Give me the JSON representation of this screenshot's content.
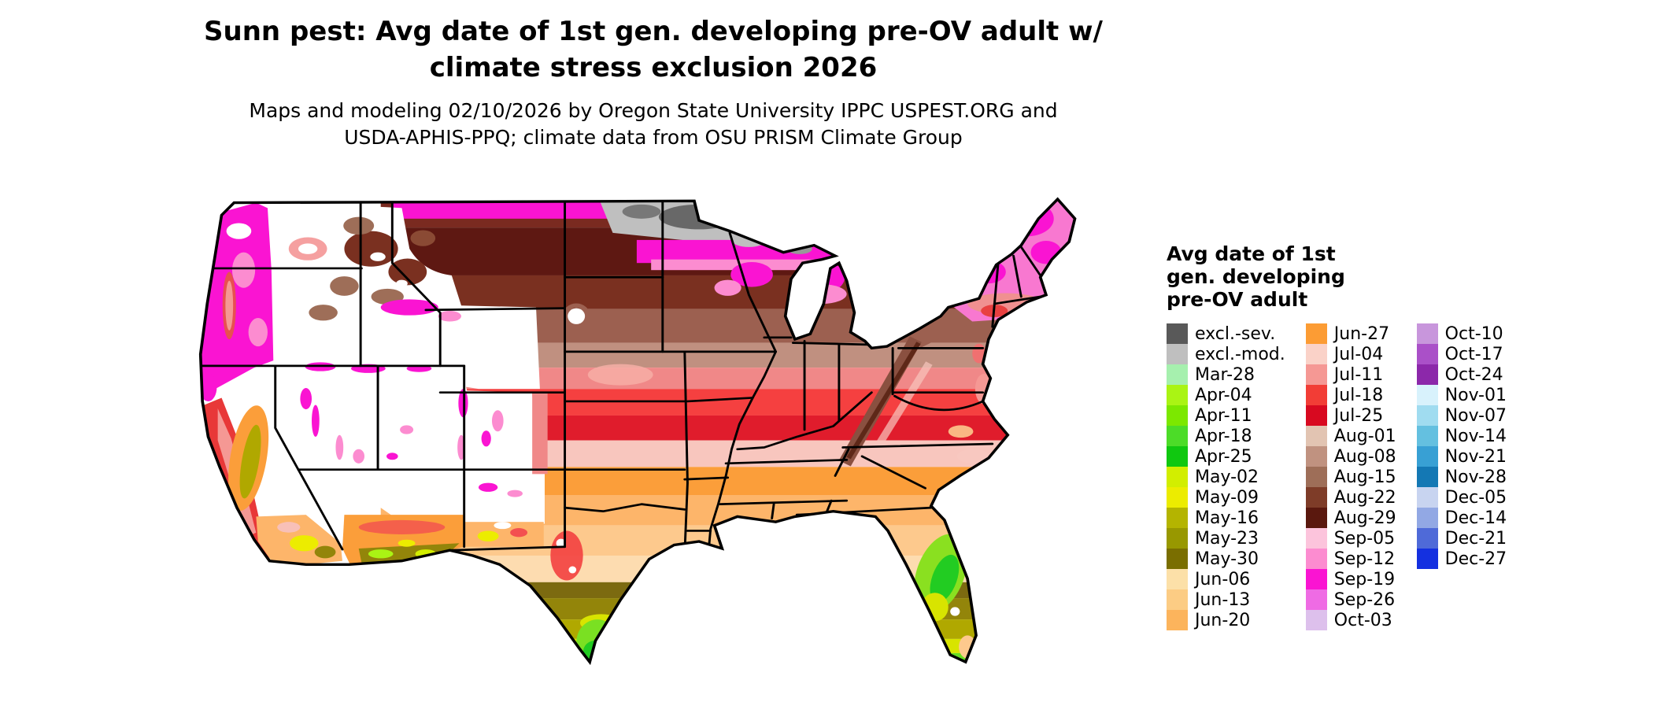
{
  "title": {
    "line1": "Sunn pest: Avg date of 1st gen. developing pre-OV adult w/",
    "line2": "climate stress exclusion 2026"
  },
  "subtitle": {
    "line1": "Maps and modeling 02/10/2026 by Oregon State University IPPC USPEST.ORG and",
    "line2": "USDA-APHIS-PPQ; climate data from OSU PRISM Climate Group"
  },
  "legend": {
    "title_lines": [
      "Avg date of 1st",
      "gen. developing",
      "pre-OV adult"
    ],
    "columns": [
      {
        "items": [
          {
            "label": "excl.-sev.",
            "color": "#595959"
          },
          {
            "label": "excl.-mod.",
            "color": "#bfbfbf"
          },
          {
            "label": "Mar-28",
            "color": "#a6f0ae"
          },
          {
            "label": "Apr-04",
            "color": "#aaf414"
          },
          {
            "label": "Apr-11",
            "color": "#7ce800"
          },
          {
            "label": "Apr-18",
            "color": "#4cdc28"
          },
          {
            "label": "Apr-25",
            "color": "#10c810"
          },
          {
            "label": "May-02",
            "color": "#d2ee00"
          },
          {
            "label": "May-09",
            "color": "#ecec00"
          },
          {
            "label": "May-16",
            "color": "#b4b400"
          },
          {
            "label": "May-23",
            "color": "#989800"
          },
          {
            "label": "May-30",
            "color": "#7a6e00"
          },
          {
            "label": "Jun-06",
            "color": "#fce0a8"
          },
          {
            "label": "Jun-13",
            "color": "#fccc84"
          },
          {
            "label": "Jun-20",
            "color": "#fcb45c"
          }
        ]
      },
      {
        "items": [
          {
            "label": "Jun-27",
            "color": "#fc9c34"
          },
          {
            "label": "Jul-04",
            "color": "#fad2c8"
          },
          {
            "label": "Jul-11",
            "color": "#f59894"
          },
          {
            "label": "Jul-18",
            "color": "#f23d36"
          },
          {
            "label": "Jul-25",
            "color": "#d80920"
          },
          {
            "label": "Aug-01",
            "color": "#e2c4b2"
          },
          {
            "label": "Aug-08",
            "color": "#c09280"
          },
          {
            "label": "Aug-15",
            "color": "#9e6e58"
          },
          {
            "label": "Aug-22",
            "color": "#7e3c28"
          },
          {
            "label": "Aug-29",
            "color": "#5a180e"
          },
          {
            "label": "Sep-05",
            "color": "#fcc4dc"
          },
          {
            "label": "Sep-12",
            "color": "#fc8cd0"
          },
          {
            "label": "Sep-19",
            "color": "#fa14d2"
          },
          {
            "label": "Sep-26",
            "color": "#ef6be4"
          },
          {
            "label": "Oct-03",
            "color": "#ddc0ec"
          }
        ]
      },
      {
        "items": [
          {
            "label": "Oct-10",
            "color": "#c896dc"
          },
          {
            "label": "Oct-17",
            "color": "#aa50c8"
          },
          {
            "label": "Oct-24",
            "color": "#8c28aa"
          },
          {
            "label": "Nov-01",
            "color": "#d8f2fc"
          },
          {
            "label": "Nov-07",
            "color": "#a0dcf0"
          },
          {
            "label": "Nov-14",
            "color": "#64c0e0"
          },
          {
            "label": "Nov-21",
            "color": "#38a0d4"
          },
          {
            "label": "Nov-28",
            "color": "#1478b4"
          },
          {
            "label": "Dec-05",
            "color": "#c8d4f0"
          },
          {
            "label": "Dec-14",
            "color": "#92a8e4"
          },
          {
            "label": "Dec-21",
            "color": "#4f6ad8"
          },
          {
            "label": "Dec-27",
            "color": "#1430e0"
          }
        ]
      }
    ]
  }
}
